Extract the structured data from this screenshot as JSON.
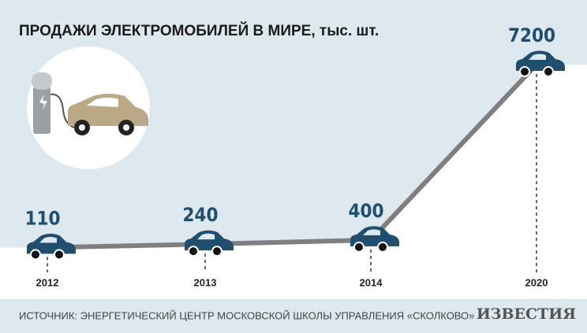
{
  "chart_data": {
    "type": "line",
    "title": "ПРОДАЖИ ЭЛЕКТРОМОБИЛЕЙ В МИРЕ, тыс. шт.",
    "categories": [
      "2012",
      "2013",
      "2014",
      "2020"
    ],
    "values": [
      110,
      240,
      400,
      7200
    ],
    "color": "#7f7f7f",
    "source": "ИСТОЧНИК: ЭНЕРГЕТИЧЕСКИЙ ЦЕНТР МОСКОВСКОЙ ШКОЛЫ УПРАВЛЕНИЯ «СКОЛКОВО»",
    "publisher": "ИЗВЕСТИЯ"
  }
}
